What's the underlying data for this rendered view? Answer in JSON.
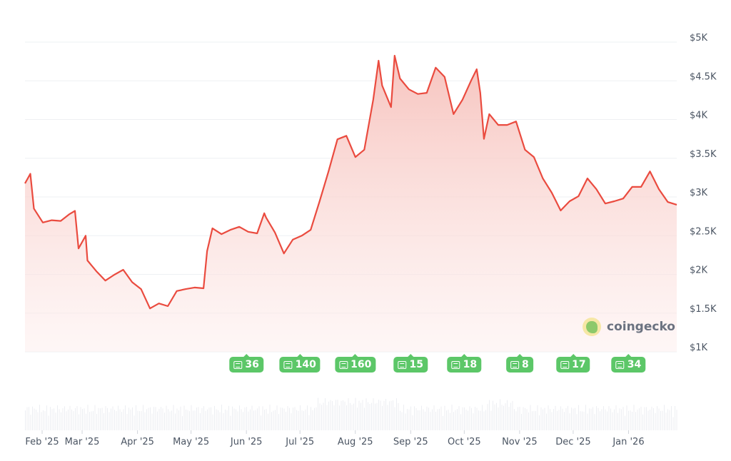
{
  "chart_data": {
    "type": "area",
    "title": "",
    "xlabel": "",
    "ylabel": "",
    "ylim": [
      1000,
      5000
    ],
    "xlim": [
      "2025-01-28",
      "2026-01-28"
    ],
    "grid": true,
    "y_ticks": [
      "$1K",
      "$1.5K",
      "$2K",
      "$2.5K",
      "$3K",
      "$3.5K",
      "$4K",
      "$4.5K",
      "$5K"
    ],
    "y_tick_values": [
      1000,
      1500,
      2000,
      2500,
      3000,
      3500,
      4000,
      4500,
      5000
    ],
    "x_ticks": [
      {
        "date": "2025-02-01",
        "label": "Feb '25"
      },
      {
        "date": "2025-03-01",
        "label": "Mar '25"
      },
      {
        "date": "2025-04-01",
        "label": "Apr '25"
      },
      {
        "date": "2025-05-01",
        "label": "May '25"
      },
      {
        "date": "2025-06-01",
        "label": "Jun '25"
      },
      {
        "date": "2025-07-01",
        "label": "Jul '25"
      },
      {
        "date": "2025-08-01",
        "label": "Aug '25"
      },
      {
        "date": "2025-09-01",
        "label": "Sep '25"
      },
      {
        "date": "2025-10-01",
        "label": "Oct '25"
      },
      {
        "date": "2025-11-01",
        "label": "Nov '25"
      },
      {
        "date": "2025-12-01",
        "label": "Dec '25"
      },
      {
        "date": "2026-01-01",
        "label": "Jan '26"
      }
    ],
    "line_color": "#ea4b3f",
    "fill_color": "#f9cfcb",
    "series": [
      {
        "x": [
          "2025-01-28",
          "2025-01-31",
          "2025-02-02",
          "2025-02-07",
          "2025-02-12",
          "2025-02-17",
          "2025-02-22",
          "2025-02-25",
          "2025-02-27",
          "2025-03-03",
          "2025-03-04",
          "2025-03-09",
          "2025-03-14",
          "2025-03-19",
          "2025-03-24",
          "2025-03-29",
          "2025-04-03",
          "2025-04-08",
          "2025-04-13",
          "2025-04-18",
          "2025-04-23",
          "2025-04-28",
          "2025-05-03",
          "2025-05-08",
          "2025-05-10",
          "2025-05-13",
          "2025-05-18",
          "2025-05-23",
          "2025-05-28",
          "2025-06-02",
          "2025-06-07",
          "2025-06-11",
          "2025-06-12",
          "2025-06-17",
          "2025-06-22",
          "2025-06-27",
          "2025-07-02",
          "2025-07-07",
          "2025-07-12",
          "2025-07-17",
          "2025-07-22",
          "2025-07-27",
          "2025-08-01",
          "2025-08-06",
          "2025-08-11",
          "2025-08-14",
          "2025-08-16",
          "2025-08-21",
          "2025-08-23",
          "2025-08-26",
          "2025-08-31",
          "2025-09-05",
          "2025-09-10",
          "2025-09-15",
          "2025-09-20",
          "2025-09-25",
          "2025-09-30",
          "2025-10-05",
          "2025-10-08",
          "2025-10-10",
          "2025-10-12",
          "2025-10-15",
          "2025-10-20",
          "2025-10-25",
          "2025-10-30",
          "2025-11-04",
          "2025-11-09",
          "2025-11-14",
          "2025-11-19",
          "2025-11-24",
          "2025-11-29",
          "2025-12-04",
          "2025-12-09",
          "2025-12-14",
          "2025-12-19",
          "2025-12-24",
          "2025-12-29",
          "2026-01-03",
          "2026-01-08",
          "2026-01-13",
          "2026-01-18",
          "2026-01-23",
          "2026-01-28"
        ],
        "y": [
          3175,
          3300,
          2850,
          2670,
          2700,
          2690,
          2780,
          2820,
          2335,
          2500,
          2180,
          2040,
          1920,
          1995,
          2060,
          1900,
          1810,
          1560,
          1625,
          1590,
          1785,
          1810,
          1830,
          1820,
          2300,
          2595,
          2520,
          2575,
          2615,
          2550,
          2530,
          2790,
          2735,
          2540,
          2270,
          2450,
          2500,
          2575,
          2945,
          3330,
          3745,
          3790,
          3515,
          3610,
          4255,
          4760,
          4440,
          4160,
          4825,
          4530,
          4390,
          4330,
          4345,
          4670,
          4550,
          4070,
          4255,
          4510,
          4650,
          4345,
          3750,
          4070,
          3930,
          3930,
          3975,
          3610,
          3515,
          3240,
          3055,
          2825,
          2945,
          3010,
          3240,
          3100,
          2915,
          2945,
          2980,
          3130,
          3130,
          3330,
          3100,
          2935,
          2900
        ]
      }
    ],
    "news_markers": [
      {
        "month": "2025-06-01",
        "count": "36"
      },
      {
        "month": "2025-07-01",
        "count": "140"
      },
      {
        "month": "2025-08-01",
        "count": "160"
      },
      {
        "month": "2025-09-01",
        "count": "15"
      },
      {
        "month": "2025-10-01",
        "count": "18"
      },
      {
        "month": "2025-11-01",
        "count": "8"
      },
      {
        "month": "2025-12-01",
        "count": "17"
      },
      {
        "month": "2026-01-01",
        "count": "34"
      }
    ],
    "watermark": "coingecko"
  }
}
